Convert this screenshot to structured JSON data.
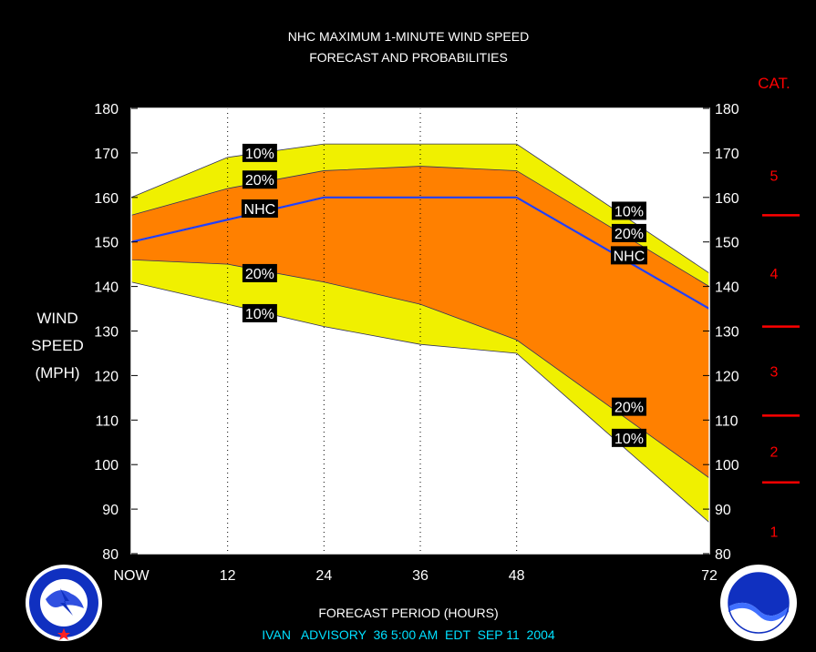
{
  "chart_data": {
    "type": "area",
    "title": "NHC MAXIMUM 1-MINUTE WIND SPEED",
    "subtitle": "FORECAST AND PROBABILITIES",
    "xlabel": "FORECAST PERIOD (HOURS)",
    "ylabel_lines": [
      "WIND",
      "SPEED",
      "(MPH)"
    ],
    "footer": "IVAN   ADVISORY  36 5:00 AM  EDT  SEP 11  2004",
    "x": [
      0,
      12,
      24,
      36,
      48,
      72
    ],
    "x_tick_labels": [
      "NOW",
      "12",
      "24",
      "36",
      "48",
      "72"
    ],
    "xlim": [
      0,
      72
    ],
    "ylim": [
      80,
      180
    ],
    "y_ticks": [
      80,
      90,
      100,
      110,
      120,
      130,
      140,
      150,
      160,
      170,
      180
    ],
    "x_gridlines": [
      12,
      24,
      36,
      48
    ],
    "series": [
      {
        "name": "10%",
        "role": "upper10",
        "values": [
          160,
          169,
          172,
          172,
          172,
          143
        ]
      },
      {
        "name": "20%",
        "role": "upper20",
        "values": [
          156,
          162,
          166,
          167,
          166,
          140
        ]
      },
      {
        "name": "NHC",
        "role": "nhc",
        "values": [
          150,
          155,
          160,
          160,
          160,
          135
        ]
      },
      {
        "name": "20%",
        "role": "lower20",
        "values": [
          146,
          145,
          141,
          136,
          128,
          97
        ]
      },
      {
        "name": "10%",
        "role": "lower10",
        "values": [
          141,
          136,
          131,
          127,
          125,
          87
        ]
      }
    ],
    "labels": [
      {
        "text": "10%",
        "x": 16,
        "y": 170
      },
      {
        "text": "20%",
        "x": 16,
        "y": 164
      },
      {
        "text": "NHC",
        "x": 16,
        "y": 157.5
      },
      {
        "text": "20%",
        "x": 16,
        "y": 143
      },
      {
        "text": "10%",
        "x": 16,
        "y": 134
      },
      {
        "text": "10%",
        "x": 62,
        "y": 157
      },
      {
        "text": "20%",
        "x": 62,
        "y": 152
      },
      {
        "text": "NHC",
        "x": 62,
        "y": 147
      },
      {
        "text": "20%",
        "x": 62,
        "y": 113
      },
      {
        "text": "10%",
        "x": 62,
        "y": 106
      }
    ],
    "category_title": "CAT.",
    "categories": [
      {
        "label": "1",
        "y": 85
      },
      {
        "label": "2",
        "y": 103
      },
      {
        "label": "3",
        "y": 121
      },
      {
        "label": "4",
        "y": 143
      },
      {
        "label": "5",
        "y": 165
      }
    ],
    "category_bounds": [
      96,
      111,
      131,
      156
    ],
    "colors": {
      "background": "#000000",
      "plot_bg": "#ffffff",
      "band10": "#f0f000",
      "band20": "#ff8000",
      "nhc_line": "#2040ff",
      "category": "#ff0000",
      "footer": "#00e0ff"
    },
    "logos": [
      "national-weather-service-logo",
      "noaa-logo"
    ]
  }
}
